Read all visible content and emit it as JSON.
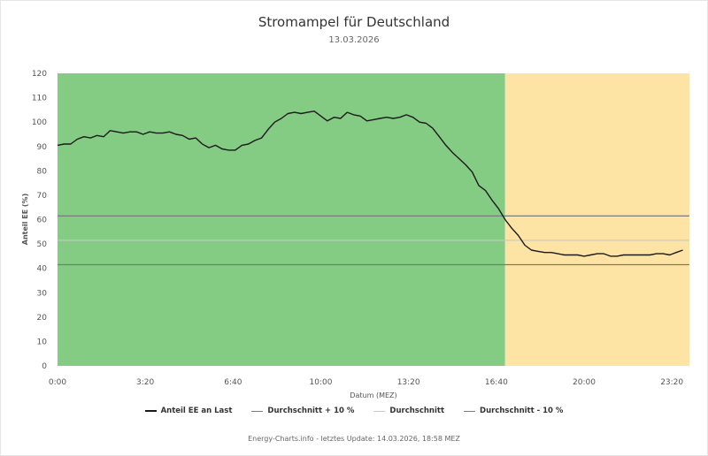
{
  "chart_data": {
    "type": "line",
    "title": "Stromampel für Deutschland",
    "subtitle": "13.03.2026",
    "xlabel": "Datum (MEZ)",
    "ylabel": "Anteil EE (%)",
    "ylim": [
      0,
      120
    ],
    "yticks": [
      "0",
      "10",
      "20",
      "30",
      "40",
      "50",
      "60",
      "70",
      "80",
      "90",
      "100",
      "110",
      "120"
    ],
    "xlim": [
      "00:00",
      "24:00"
    ],
    "xticks": [
      "0:00",
      "3:20",
      "6:40",
      "10:00",
      "13:20",
      "16:40",
      "20:00",
      "23:20"
    ],
    "grid": false,
    "legend_position": "bottom",
    "bands": [
      {
        "from": "00:00",
        "to": "17:00",
        "color": "#84cb84"
      },
      {
        "from": "17:00",
        "to": "24:00",
        "color": "#fde3a4"
      }
    ],
    "series": [
      {
        "name": "Anteil EE an Last",
        "color": "#1a1a1a",
        "points": [
          [
            "00:00",
            90.5
          ],
          [
            "00:15",
            91
          ],
          [
            "00:30",
            91
          ],
          [
            "00:45",
            93
          ],
          [
            "01:00",
            94
          ],
          [
            "01:15",
            93.5
          ],
          [
            "01:30",
            94.5
          ],
          [
            "01:45",
            94
          ],
          [
            "02:00",
            96.5
          ],
          [
            "02:15",
            96
          ],
          [
            "02:30",
            95.5
          ],
          [
            "02:45",
            96
          ],
          [
            "03:00",
            96
          ],
          [
            "03:15",
            95
          ],
          [
            "03:30",
            96
          ],
          [
            "03:45",
            95.5
          ],
          [
            "04:00",
            95.5
          ],
          [
            "04:15",
            96
          ],
          [
            "04:30",
            95
          ],
          [
            "04:45",
            94.5
          ],
          [
            "05:00",
            93
          ],
          [
            "05:15",
            93.5
          ],
          [
            "05:30",
            91
          ],
          [
            "05:45",
            89.5
          ],
          [
            "06:00",
            90.5
          ],
          [
            "06:15",
            89
          ],
          [
            "06:30",
            88.5
          ],
          [
            "06:45",
            88.5
          ],
          [
            "07:00",
            90.5
          ],
          [
            "07:15",
            91
          ],
          [
            "07:30",
            92.5
          ],
          [
            "07:45",
            93.5
          ],
          [
            "08:00",
            97
          ],
          [
            "08:15",
            100
          ],
          [
            "08:30",
            101.5
          ],
          [
            "08:45",
            103.5
          ],
          [
            "09:00",
            104
          ],
          [
            "09:15",
            103.5
          ],
          [
            "09:30",
            104
          ],
          [
            "09:45",
            104.5
          ],
          [
            "10:00",
            102.5
          ],
          [
            "10:15",
            100.5
          ],
          [
            "10:30",
            102
          ],
          [
            "10:45",
            101.5
          ],
          [
            "11:00",
            104
          ],
          [
            "11:15",
            103
          ],
          [
            "11:30",
            102.5
          ],
          [
            "11:45",
            100.5
          ],
          [
            "12:00",
            101
          ],
          [
            "12:15",
            101.5
          ],
          [
            "12:30",
            102
          ],
          [
            "12:45",
            101.5
          ],
          [
            "13:00",
            102
          ],
          [
            "13:15",
            103
          ],
          [
            "13:30",
            102
          ],
          [
            "13:45",
            100
          ],
          [
            "14:00",
            99.5
          ],
          [
            "14:15",
            97.5
          ],
          [
            "14:30",
            94
          ],
          [
            "14:45",
            90.5
          ],
          [
            "15:00",
            87.5
          ],
          [
            "15:15",
            85
          ],
          [
            "15:30",
            82.5
          ],
          [
            "15:45",
            79.5
          ],
          [
            "16:00",
            74
          ],
          [
            "16:15",
            72
          ],
          [
            "16:30",
            68
          ],
          [
            "16:45",
            64.5
          ],
          [
            "17:00",
            60
          ],
          [
            "17:15",
            56.5
          ],
          [
            "17:30",
            53.5
          ],
          [
            "17:45",
            49.5
          ],
          [
            "18:00",
            47.5
          ],
          [
            "18:15",
            47
          ],
          [
            "18:30",
            46.5
          ],
          [
            "18:45",
            46.5
          ],
          [
            "19:00",
            46
          ],
          [
            "19:15",
            45.5
          ],
          [
            "19:30",
            45.5
          ],
          [
            "19:45",
            45.5
          ],
          [
            "20:00",
            45
          ],
          [
            "20:15",
            45.5
          ],
          [
            "20:30",
            46
          ],
          [
            "20:45",
            46
          ],
          [
            "21:00",
            45
          ],
          [
            "21:15",
            45
          ],
          [
            "21:30",
            45.5
          ],
          [
            "21:45",
            45.5
          ],
          [
            "22:00",
            45.5
          ],
          [
            "22:15",
            45.5
          ],
          [
            "22:30",
            45.5
          ],
          [
            "22:45",
            46
          ],
          [
            "23:00",
            46
          ],
          [
            "23:15",
            45.5
          ],
          [
            "23:30",
            46.5
          ],
          [
            "23:45",
            47.5
          ]
        ]
      },
      {
        "name": "Durchschnitt + 10 %",
        "color": "#7a7a7a",
        "value": 61.5
      },
      {
        "name": "Durchschnitt",
        "color": "#c8c8c8",
        "value": 51.5
      },
      {
        "name": "Durchschnitt - 10 %",
        "color": "#7a7a7a",
        "value": 41.5
      }
    ],
    "footer": "Energy-Charts.info - letztes Update: 14.03.2026, 18:58 MEZ"
  }
}
